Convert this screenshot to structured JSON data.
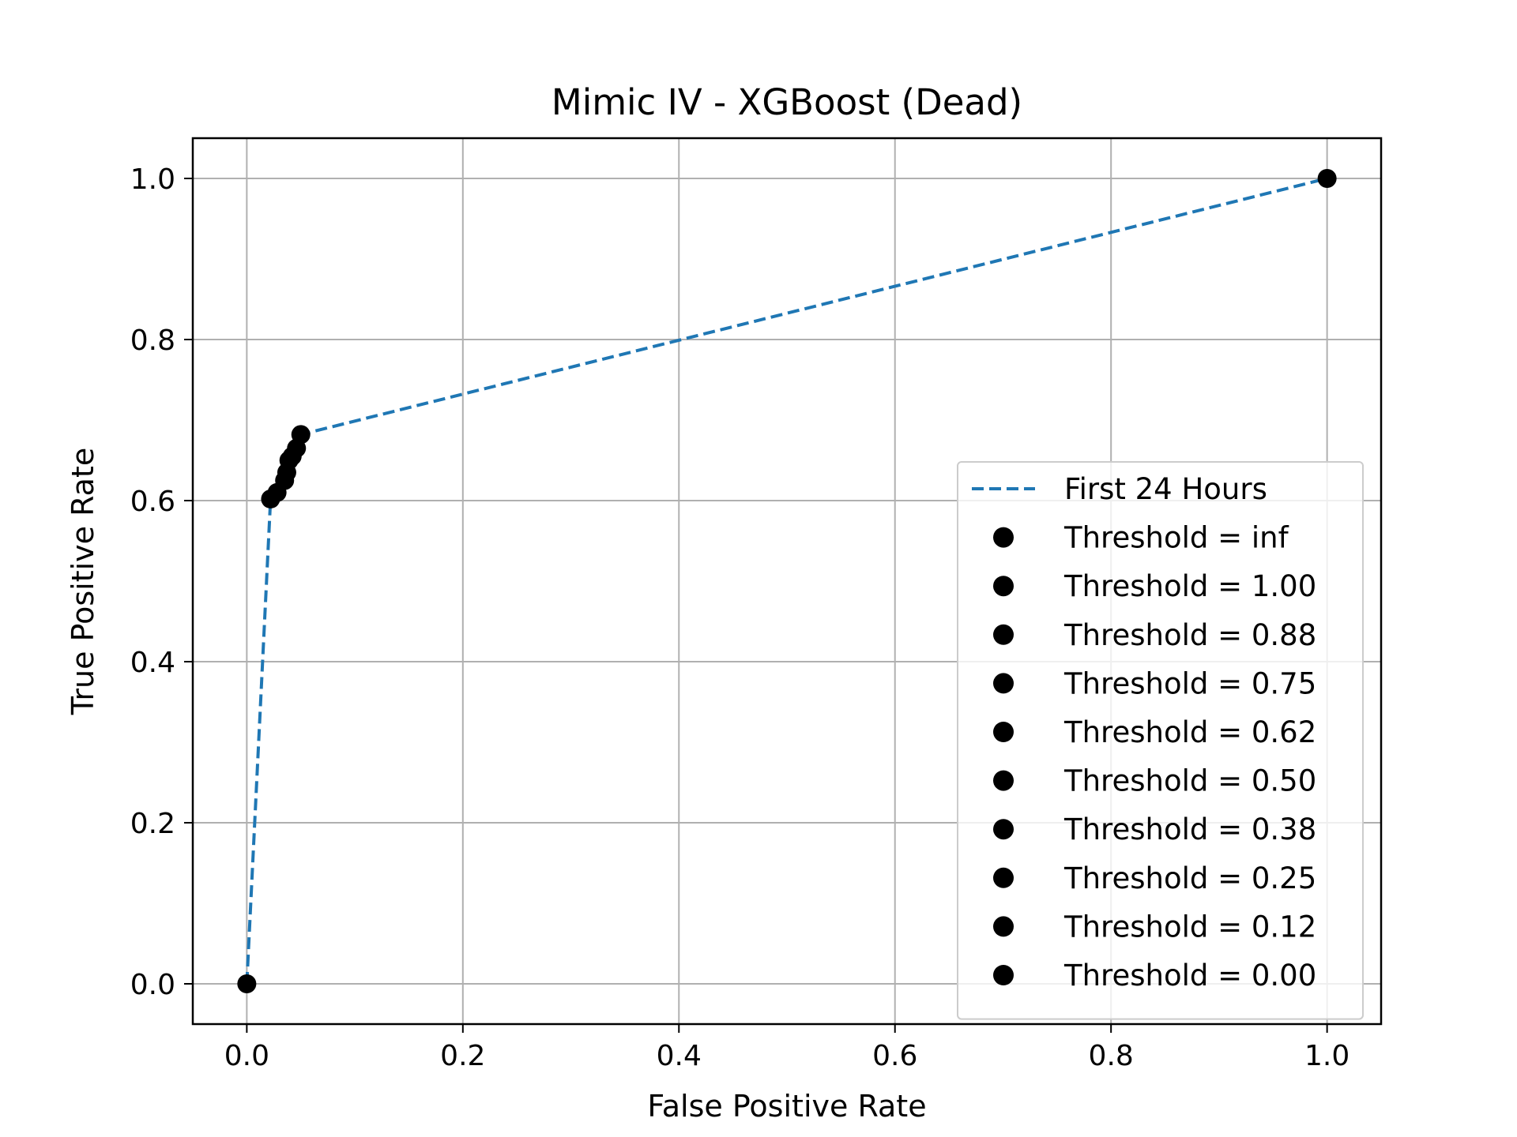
{
  "chart_data": {
    "type": "line",
    "title": "Mimic IV - XGBoost (Dead)",
    "xlabel": "False Positive Rate",
    "ylabel": "True Positive Rate",
    "xlim": [
      -0.05,
      1.05
    ],
    "ylim": [
      -0.05,
      1.05
    ],
    "xticks": [
      0.0,
      0.2,
      0.4,
      0.6,
      0.8,
      1.0
    ],
    "yticks": [
      0.0,
      0.2,
      0.4,
      0.6,
      0.8,
      1.0
    ],
    "xtick_labels": [
      "0.0",
      "0.2",
      "0.4",
      "0.6",
      "0.8",
      "1.0"
    ],
    "ytick_labels": [
      "0.0",
      "0.2",
      "0.4",
      "0.6",
      "0.8",
      "1.0"
    ],
    "grid": true,
    "legend_position": "lower-right",
    "series": [
      {
        "name": "First 24 Hours",
        "style": "dashed",
        "color": "#1f77b4",
        "x": [
          0.0,
          0.022,
          0.028,
          0.035,
          0.037,
          0.039,
          0.042,
          0.046,
          0.048,
          0.05,
          1.0
        ],
        "y": [
          0.0,
          0.602,
          0.61,
          0.625,
          0.635,
          0.65,
          0.655,
          0.665,
          0.675,
          0.682,
          1.0
        ]
      }
    ],
    "threshold_points": [
      {
        "label": "Threshold = inf",
        "x": 0.0,
        "y": 0.0
      },
      {
        "label": "Threshold = 1.00",
        "x": 0.022,
        "y": 0.602
      },
      {
        "label": "Threshold = 0.88",
        "x": 0.028,
        "y": 0.61
      },
      {
        "label": "Threshold = 0.75",
        "x": 0.035,
        "y": 0.625
      },
      {
        "label": "Threshold = 0.62",
        "x": 0.037,
        "y": 0.635
      },
      {
        "label": "Threshold = 0.50",
        "x": 0.039,
        "y": 0.65
      },
      {
        "label": "Threshold = 0.38",
        "x": 0.042,
        "y": 0.655
      },
      {
        "label": "Threshold = 0.25",
        "x": 0.046,
        "y": 0.665
      },
      {
        "label": "Threshold = 0.12",
        "x": 0.05,
        "y": 0.682
      },
      {
        "label": "Threshold = 0.00",
        "x": 1.0,
        "y": 1.0
      }
    ],
    "marker_color": "#000000",
    "grid_color": "#b0b0b0"
  }
}
